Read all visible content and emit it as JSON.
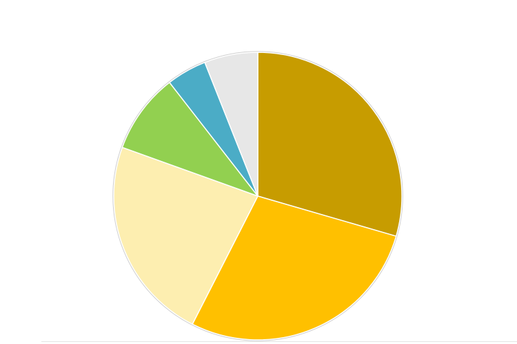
{
  "chart_data": {
    "type": "pie",
    "title": "",
    "start_angle_deg": 0,
    "direction": "clockwise",
    "slices": [
      {
        "value": 29.5,
        "color": "#c79c00"
      },
      {
        "value": 28.0,
        "color": "#ffc000"
      },
      {
        "value": 23.0,
        "color": "#fdeeb0"
      },
      {
        "value": 9.0,
        "color": "#92d050"
      },
      {
        "value": 4.5,
        "color": "#4bacc6"
      },
      {
        "value": 6.0,
        "color": "#e7e7e7"
      }
    ],
    "slice_border_color": "#ffffff",
    "outline_color": "#d0d0d0"
  }
}
